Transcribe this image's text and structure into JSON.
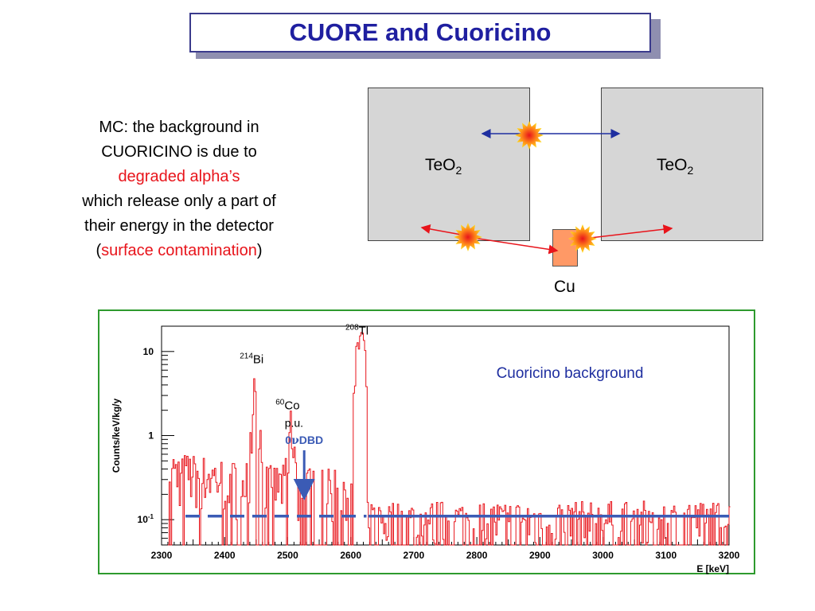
{
  "slide": {
    "title": "CUORE and Cuoricino",
    "description": {
      "line1": "MC: the background in",
      "line2": "CUORICINO is due to",
      "line3": "degraded alpha’s",
      "line4": "which release only a part of",
      "line5": "their energy in the detector",
      "line6_open": "(",
      "line6_red": "surface contamination",
      "line6_close": ")"
    },
    "diagram": {
      "crystal_left": {
        "base": "TeO",
        "sub": "2"
      },
      "crystal_right": {
        "base": "TeO",
        "sub": "2"
      },
      "cu_label": "Cu"
    },
    "colors": {
      "title": "#1f1fa0",
      "highlight": "#e8141b",
      "spectrum": "#e8141b",
      "background_level": "#3b5bb5",
      "frame": "#2e9a2e"
    }
  },
  "chart_data": {
    "type": "line",
    "title": "Cuoricino background",
    "xlabel": "E [keV]",
    "ylabel": "Counts/keV/kg/y",
    "xlim": [
      2300,
      3200
    ],
    "ylim": [
      0.05,
      20
    ],
    "y_scale": "log",
    "x_ticks": [
      2300,
      2400,
      2500,
      2600,
      2700,
      2800,
      2900,
      3000,
      3100,
      3200
    ],
    "x_tick_labels": [
      "2300",
      "2400",
      "2500",
      "2600",
      "2700",
      "2800",
      "2900",
      "3000",
      "3100",
      "3200"
    ],
    "y_ticks": [
      0.1,
      1,
      10
    ],
    "y_tick_labels": [
      {
        "base": "10",
        "sup": "-1"
      },
      {
        "base": "1",
        "sup": ""
      },
      {
        "base": "10",
        "sup": ""
      }
    ],
    "background_level": 0.11,
    "peaks": [
      {
        "isotope": "Bi",
        "mass": "214",
        "energy": 2448,
        "height": 4.2,
        "note": ""
      },
      {
        "isotope": "Co",
        "mass": "60",
        "energy": 2505,
        "height": 0.9,
        "note": "p.u."
      },
      {
        "isotope": "Tl",
        "mass": "208",
        "energy": 2615,
        "height": 14,
        "note": ""
      }
    ],
    "qbb_marker": {
      "label_prefix": "0",
      "label_nu": "ν",
      "label_suffix": "DBD",
      "energy": 2530
    }
  }
}
